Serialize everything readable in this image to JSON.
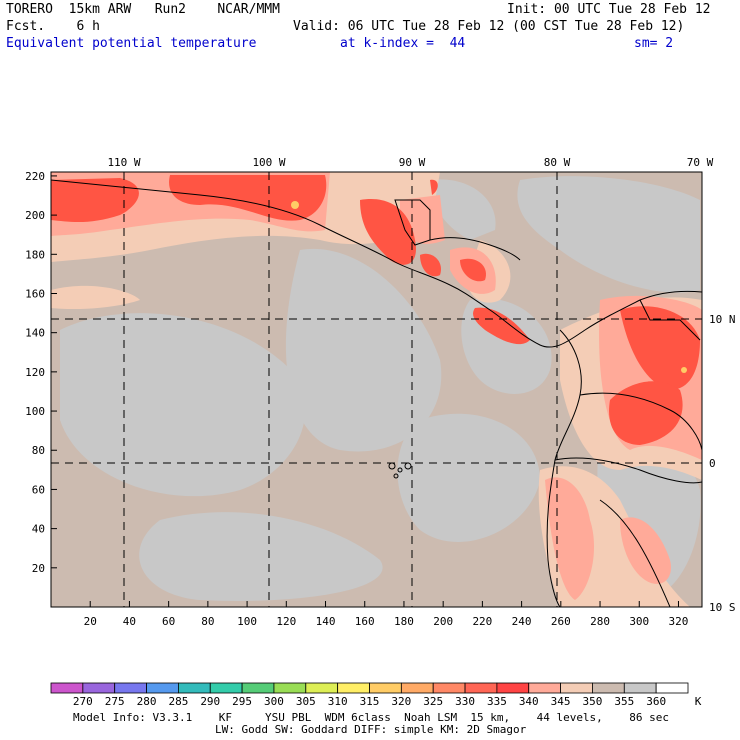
{
  "header": {
    "model": "TORERO  15km ARW   Run2    NCAR/MMM",
    "init": "Init: 00 UTC Tue 28 Feb 12",
    "fcst": "Fcst.    6 h",
    "valid": "Valid: 06 UTC Tue 28 Feb 12 (00 CST Tue 28 Feb 12)",
    "field": "Equivalent potential temperature",
    "kindex": "at k-index =  44",
    "sm": "sm= 2"
  },
  "axes": {
    "x_ticks": [
      "20",
      "40",
      "60",
      "80",
      "100",
      "120",
      "140",
      "160",
      "180",
      "200",
      "220",
      "240",
      "260",
      "280",
      "300",
      "320"
    ],
    "y_ticks": [
      "20",
      "40",
      "60",
      "80",
      "100",
      "120",
      "140",
      "160",
      "180",
      "200",
      "220"
    ],
    "lon_labels": [
      "110 W",
      "100 W",
      "90 W",
      "80 W",
      "70 W"
    ],
    "lat_labels": [
      "10 N",
      "0",
      "10 S"
    ]
  },
  "colorbar": {
    "labels": [
      "270",
      "275",
      "280",
      "285",
      "290",
      "295",
      "300",
      "305",
      "310",
      "315",
      "320",
      "325",
      "330",
      "335",
      "340",
      "345",
      "350",
      "355",
      "360"
    ],
    "unit": "K",
    "colors": [
      "#cc55cc",
      "#9966dd",
      "#7777ee",
      "#5599ee",
      "#33bbbb",
      "#33ccaa",
      "#55cc77",
      "#99dd55",
      "#ddee55",
      "#ffee66",
      "#ffcc66",
      "#ffaa66",
      "#ff8866",
      "#ff6655",
      "#ff4444",
      "#ffaa99",
      "#f4cdb6",
      "#ccbbb0",
      "#c8c8c8",
      "#ffffff"
    ]
  },
  "footer": {
    "line1": "Model Info: V3.3.1    KF     YSU PBL  WDM 6class  Noah LSM  15 km,    44 levels,    86 sec",
    "line2": "LW: Godd SW: Goddard DIFF: simple KM: 2D Smagor"
  },
  "legend_colors": {
    "background_field": "#ccbbb0",
    "low_field": "#c8c8c8",
    "mid_field": "#f4cdb6",
    "high_field": "#ffaa99",
    "very_high_field": "#ff5544",
    "gridline": "#000000"
  }
}
